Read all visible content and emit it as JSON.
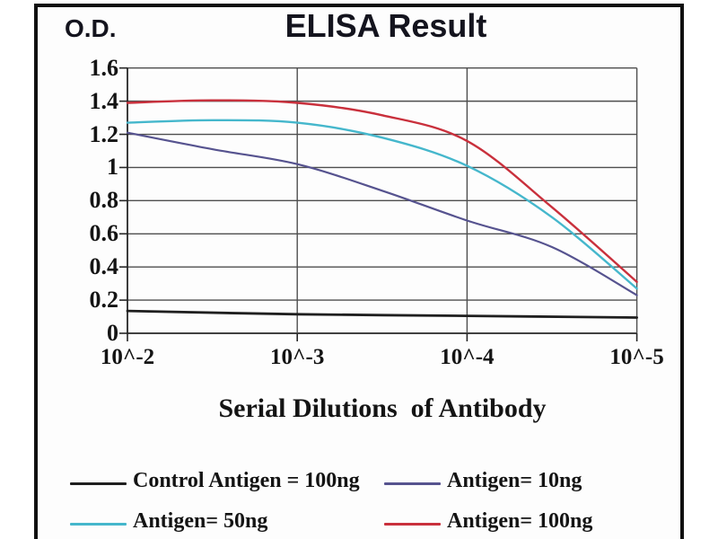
{
  "chart_data": {
    "type": "line",
    "title": "ELISA Result",
    "ylabel": "O.D.",
    "xlabel": "Serial Dilutions  of Antibody",
    "x_scale": "log_decades",
    "x_unit": "decade_index_from_10^-2",
    "x_ticklabels": [
      "10^-2",
      "10^-3",
      "10^-4",
      "10^-5"
    ],
    "y_ticks": [
      {
        "v": 1.6,
        "label": "1.6"
      },
      {
        "v": 1.4,
        "label": "1.4"
      },
      {
        "v": 1.2,
        "label": "1.2"
      },
      {
        "v": 1.0,
        "label": "1"
      },
      {
        "v": 0.8,
        "label": "0.8"
      },
      {
        "v": 0.6,
        "label": "0.6"
      },
      {
        "v": 0.4,
        "label": "0.4"
      },
      {
        "v": 0.2,
        "label": "0.2"
      },
      {
        "v": 0.0,
        "label": "0"
      }
    ],
    "ylim": [
      0,
      1.6
    ],
    "grid": true,
    "grid_color": "#4e4e4e",
    "axis_color": "#262626",
    "series": [
      {
        "name": "Control Antigen = 100ng",
        "color": "#1f1f1f",
        "line_width": 2.8,
        "points": [
          [
            0,
            0.135
          ],
          [
            1,
            0.115
          ],
          [
            2,
            0.105
          ],
          [
            3,
            0.095
          ]
        ]
      },
      {
        "name": "Antigen= 10ng",
        "color": "#56538f",
        "line_width": 2.2,
        "points": [
          [
            0,
            1.21
          ],
          [
            0.5,
            1.11
          ],
          [
            1,
            1.02
          ],
          [
            1.5,
            0.86
          ],
          [
            2,
            0.68
          ],
          [
            2.5,
            0.52
          ],
          [
            3,
            0.23
          ]
        ]
      },
      {
        "name": "Antigen= 50ng",
        "color": "#45b7cc",
        "line_width": 2.4,
        "points": [
          [
            0,
            1.27
          ],
          [
            0.5,
            1.285
          ],
          [
            1,
            1.27
          ],
          [
            1.5,
            1.18
          ],
          [
            2,
            1.01
          ],
          [
            2.5,
            0.7
          ],
          [
            3,
            0.27
          ]
        ]
      },
      {
        "name": "Antigen= 100ng",
        "color": "#c9303c",
        "line_width": 2.4,
        "points": [
          [
            0,
            1.39
          ],
          [
            0.5,
            1.405
          ],
          [
            1,
            1.39
          ],
          [
            1.5,
            1.315
          ],
          [
            2,
            1.16
          ],
          [
            2.5,
            0.76
          ],
          [
            3,
            0.31
          ]
        ]
      }
    ],
    "legend": {
      "position": "below",
      "items": [
        {
          "series": 0,
          "row": 0,
          "col": 0
        },
        {
          "series": 1,
          "row": 0,
          "col": 1
        },
        {
          "series": 2,
          "row": 1,
          "col": 0
        },
        {
          "series": 3,
          "row": 1,
          "col": 1
        }
      ]
    }
  }
}
